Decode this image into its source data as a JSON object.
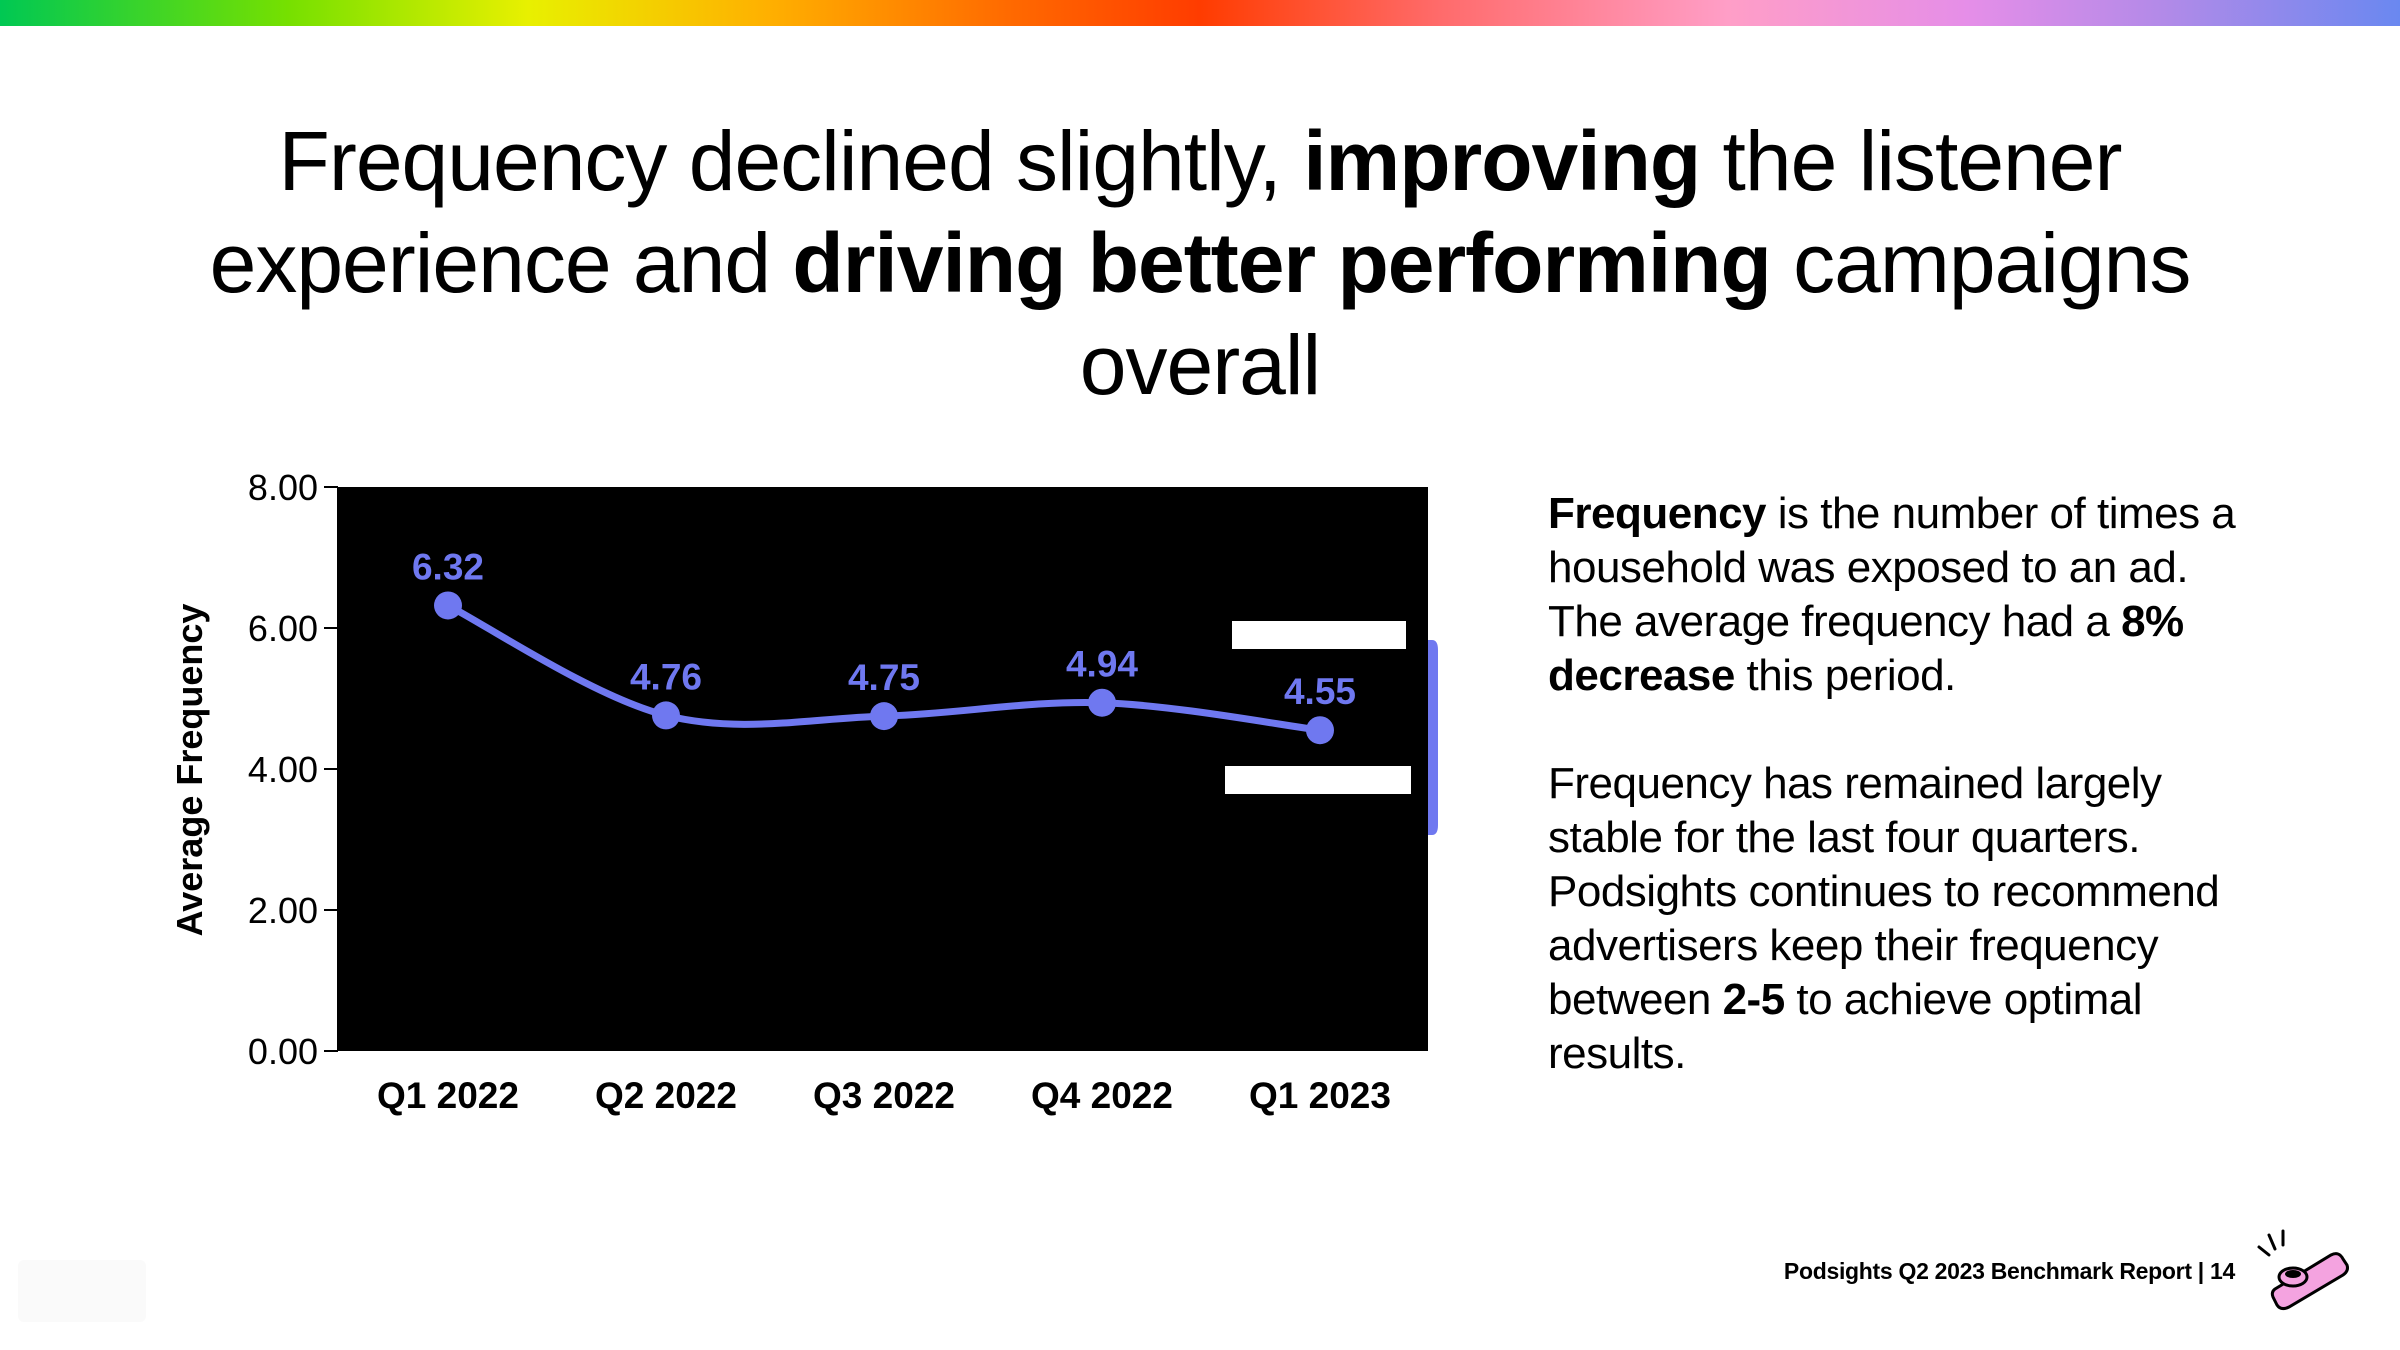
{
  "title": {
    "part1": "Frequency declined slightly, ",
    "bold1": "improving",
    "part2": " the listener experience and ",
    "bold2": "driving better performing",
    "part3": " campaigns overall"
  },
  "chart_data": {
    "type": "line",
    "categories": [
      "Q1 2022",
      "Q2 2022",
      "Q3 2022",
      "Q4 2022",
      "Q1 2023"
    ],
    "values": [
      6.32,
      4.76,
      4.75,
      4.94,
      4.55
    ],
    "value_labels": [
      "6.32",
      "4.76",
      "4.75",
      "4.94",
      "4.55"
    ],
    "ylabel": "Average Frequency",
    "xlabel": "",
    "ylim": [
      0,
      8
    ],
    "yticks": [
      "0.00",
      "2.00",
      "4.00",
      "6.00",
      "8.00"
    ],
    "ytick_values": [
      0,
      2,
      4,
      6,
      8
    ],
    "plot_background": "#000000",
    "series_color": "#6f78f0"
  },
  "description": {
    "p1_bold": "Frequency",
    "p1_text": " is the number of times a household was exposed to an ad. The average frequency had a ",
    "p1_bold2": "8% decrease",
    "p1_end": " this period.",
    "p2_text": "Frequency has remained largely stable for the last four quarters. Podsights continues to recommend advertisers keep their frequency between ",
    "p2_bold": "2-5",
    "p2_end": " to achieve optimal results."
  },
  "footer": {
    "text": "Podsights Q2 2023 Benchmark Report | 14"
  },
  "colors": {
    "accent": "#6f78f0",
    "logo_pink": "#f4a3e0"
  }
}
